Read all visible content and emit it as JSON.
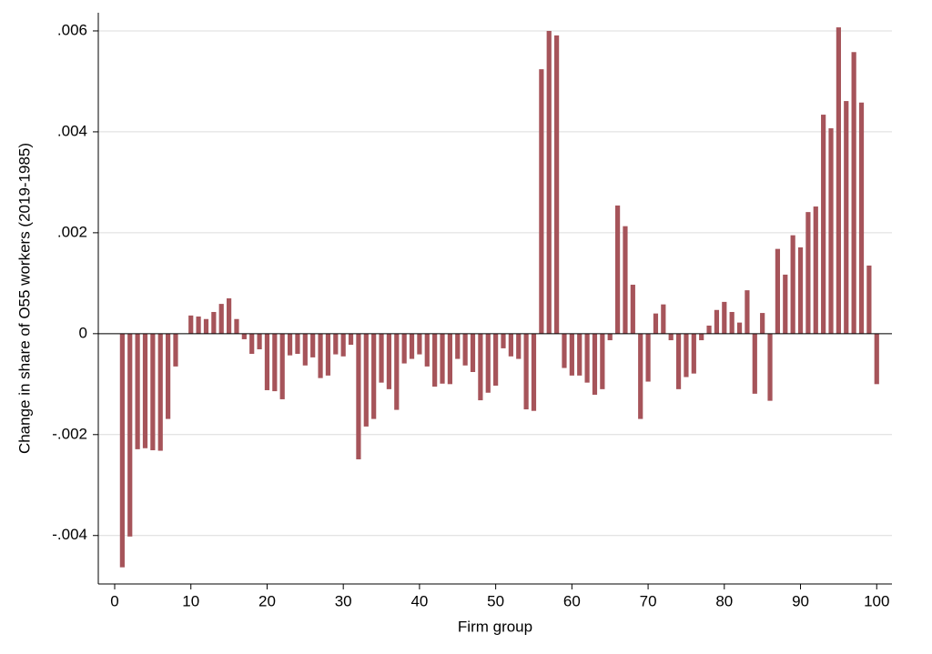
{
  "chart_data": {
    "type": "bar",
    "xlabel": "Firm group",
    "ylabel": "Change in share of O55 workers (2019-1985)",
    "color": "#a6545a",
    "grid": true,
    "xlim": [
      -2.15,
      102.0
    ],
    "ylim": [
      -0.00496,
      0.00636
    ],
    "xticks": [
      0,
      10,
      20,
      30,
      40,
      50,
      60,
      70,
      80,
      90,
      100
    ],
    "yticks": [
      {
        "value": -0.004,
        "label": "-.004"
      },
      {
        "value": -0.002,
        "label": "-.002"
      },
      0,
      {
        "value": 0.002,
        "label": ".002"
      },
      {
        "value": 0.004,
        "label": ".004"
      },
      {
        "value": 0.006,
        "label": ".006"
      }
    ],
    "x": [
      1,
      2,
      3,
      4,
      5,
      6,
      7,
      8,
      9,
      10,
      11,
      12,
      13,
      14,
      15,
      16,
      17,
      18,
      19,
      20,
      21,
      22,
      23,
      24,
      25,
      26,
      27,
      28,
      29,
      30,
      31,
      32,
      33,
      34,
      35,
      36,
      37,
      38,
      39,
      40,
      41,
      42,
      43,
      44,
      45,
      46,
      47,
      48,
      49,
      50,
      51,
      52,
      53,
      54,
      55,
      56,
      57,
      58,
      59,
      60,
      61,
      62,
      63,
      64,
      65,
      66,
      67,
      68,
      69,
      70,
      71,
      72,
      73,
      74,
      75,
      76,
      77,
      78,
      79,
      80,
      81,
      82,
      83,
      84,
      85,
      86,
      87,
      88,
      89,
      90,
      91,
      92,
      93,
      94,
      95,
      96,
      97,
      98,
      99,
      100
    ],
    "values": [
      -0.00463,
      -0.00402,
      -0.00229,
      -0.00227,
      -0.00231,
      -0.00232,
      -0.00169,
      -0.00065,
      0,
      0.00036,
      0.00034,
      0.00029,
      0.00043,
      0.00059,
      0.0007,
      0.00029,
      -0.00011,
      -0.0004,
      -0.00031,
      -0.00112,
      -0.00114,
      -0.0013,
      -0.00043,
      -0.0004,
      -0.00063,
      -0.00047,
      -0.00088,
      -0.00083,
      -0.00041,
      -0.00045,
      -0.00022,
      -0.00249,
      -0.00184,
      -0.00169,
      -0.00097,
      -0.0011,
      -0.00151,
      -0.00059,
      -0.0005,
      -0.00041,
      -0.00065,
      -0.00105,
      -0.00099,
      -0.001,
      -0.0005,
      -0.00063,
      -0.00076,
      -0.00132,
      -0.00117,
      -0.00103,
      -0.00029,
      -0.00045,
      -0.0005,
      -0.0015,
      -0.00153,
      0.00524,
      0.006,
      0.00591,
      -0.00068,
      -0.00083,
      -0.00083,
      -0.00097,
      -0.00121,
      -0.0011,
      -0.00013,
      0.00254,
      0.00213,
      0.00097,
      -0.00169,
      -0.00095,
      0.0004,
      0.00058,
      -0.00013,
      -0.0011,
      -0.00086,
      -0.00079,
      -0.00013,
      0.00016,
      0.00047,
      0.00063,
      0.00043,
      0.00022,
      0.00086,
      -0.00119,
      0.00041,
      -0.00133,
      0.00168,
      0.00117,
      0.00195,
      0.00171,
      0.00241,
      0.00252,
      0.00434,
      0.00407,
      0.00607,
      0.00461,
      0.00558,
      0.00458,
      0.00135,
      -0.001
    ]
  }
}
